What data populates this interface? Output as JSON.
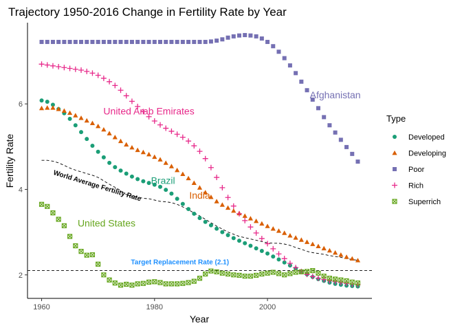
{
  "chart_data": {
    "type": "scatter",
    "title": "Trajectory 1950-2016 Change in Fertility Rate by Year",
    "xlabel": "Year",
    "ylabel": "Fertility Rate",
    "xlim": [
      1957.5,
      2018.5
    ],
    "ylim": [
      1.45,
      7.9
    ],
    "x_ticks": [
      1960,
      1980,
      2000
    ],
    "y_ticks": [
      2,
      4,
      6
    ],
    "grid": false,
    "legend": {
      "title": "Type",
      "position": "right"
    },
    "series": [
      {
        "name": "Developed",
        "color": "#1b9e77",
        "shape": "circle",
        "x": [
          1960,
          1961,
          1962,
          1963,
          1964,
          1965,
          1966,
          1967,
          1968,
          1969,
          1970,
          1971,
          1972,
          1973,
          1974,
          1975,
          1976,
          1977,
          1978,
          1979,
          1980,
          1981,
          1982,
          1983,
          1984,
          1985,
          1986,
          1987,
          1988,
          1989,
          1990,
          1991,
          1992,
          1993,
          1994,
          1995,
          1996,
          1997,
          1998,
          1999,
          2000,
          2001,
          2002,
          2003,
          2004,
          2005,
          2006,
          2007,
          2008,
          2009,
          2010,
          2011,
          2012,
          2013,
          2014,
          2015,
          2016
        ],
        "y": [
          6.08,
          6.05,
          5.98,
          5.88,
          5.78,
          5.65,
          5.5,
          5.34,
          5.18,
          5.02,
          4.88,
          4.75,
          4.62,
          4.52,
          4.44,
          4.37,
          4.3,
          4.24,
          4.19,
          4.15,
          4.11,
          4.06,
          3.99,
          3.9,
          3.78,
          3.66,
          3.54,
          3.43,
          3.33,
          3.24,
          3.16,
          3.08,
          3.0,
          2.93,
          2.86,
          2.8,
          2.74,
          2.68,
          2.62,
          2.56,
          2.5,
          2.43,
          2.36,
          2.29,
          2.22,
          2.15,
          2.08,
          2.01,
          1.95,
          1.9,
          1.86,
          1.82,
          1.79,
          1.77,
          1.75,
          1.74,
          1.73
        ]
      },
      {
        "name": "Developing",
        "color": "#d95f02",
        "shape": "triangle",
        "x": [
          1960,
          1961,
          1962,
          1963,
          1964,
          1965,
          1966,
          1967,
          1968,
          1969,
          1970,
          1971,
          1972,
          1973,
          1974,
          1975,
          1976,
          1977,
          1978,
          1979,
          1980,
          1981,
          1982,
          1983,
          1984,
          1985,
          1986,
          1987,
          1988,
          1989,
          1990,
          1991,
          1992,
          1993,
          1994,
          1995,
          1996,
          1997,
          1998,
          1999,
          2000,
          2001,
          2002,
          2003,
          2004,
          2005,
          2006,
          2007,
          2008,
          2009,
          2010,
          2011,
          2012,
          2013,
          2014,
          2015,
          2016
        ],
        "y": [
          5.9,
          5.91,
          5.91,
          5.88,
          5.84,
          5.79,
          5.73,
          5.67,
          5.61,
          5.55,
          5.48,
          5.4,
          5.31,
          5.22,
          5.13,
          5.05,
          4.98,
          4.92,
          4.87,
          4.82,
          4.76,
          4.7,
          4.62,
          4.54,
          4.45,
          4.36,
          4.26,
          4.15,
          4.04,
          3.93,
          3.82,
          3.72,
          3.64,
          3.57,
          3.5,
          3.44,
          3.38,
          3.32,
          3.26,
          3.2,
          3.14,
          3.08,
          3.03,
          2.98,
          2.92,
          2.87,
          2.82,
          2.77,
          2.72,
          2.67,
          2.62,
          2.57,
          2.52,
          2.47,
          2.42,
          2.38,
          2.34
        ]
      },
      {
        "name": "Poor",
        "color": "#7570b3",
        "shape": "square",
        "x": [
          1960,
          1961,
          1962,
          1963,
          1964,
          1965,
          1966,
          1967,
          1968,
          1969,
          1970,
          1971,
          1972,
          1973,
          1974,
          1975,
          1976,
          1977,
          1978,
          1979,
          1980,
          1981,
          1982,
          1983,
          1984,
          1985,
          1986,
          1987,
          1988,
          1989,
          1990,
          1991,
          1992,
          1993,
          1994,
          1995,
          1996,
          1997,
          1998,
          1999,
          2000,
          2001,
          2002,
          2003,
          2004,
          2005,
          2006,
          2007,
          2008,
          2009,
          2010,
          2011,
          2012,
          2013,
          2014,
          2015,
          2016
        ],
        "y": [
          7.45,
          7.45,
          7.45,
          7.45,
          7.45,
          7.45,
          7.45,
          7.45,
          7.45,
          7.45,
          7.45,
          7.45,
          7.45,
          7.45,
          7.45,
          7.45,
          7.45,
          7.45,
          7.45,
          7.45,
          7.45,
          7.45,
          7.45,
          7.45,
          7.45,
          7.45,
          7.45,
          7.45,
          7.45,
          7.45,
          7.46,
          7.48,
          7.51,
          7.55,
          7.58,
          7.6,
          7.61,
          7.6,
          7.58,
          7.53,
          7.45,
          7.35,
          7.22,
          7.07,
          6.9,
          6.72,
          6.52,
          6.32,
          6.1,
          5.9,
          5.69,
          5.5,
          5.33,
          5.16,
          4.99,
          4.83,
          4.65
        ]
      },
      {
        "name": "Rich",
        "color": "#e7298a",
        "shape": "plus",
        "x": [
          1960,
          1961,
          1962,
          1963,
          1964,
          1965,
          1966,
          1967,
          1968,
          1969,
          1970,
          1971,
          1972,
          1973,
          1974,
          1975,
          1976,
          1977,
          1978,
          1979,
          1980,
          1981,
          1982,
          1983,
          1984,
          1985,
          1986,
          1987,
          1988,
          1989,
          1990,
          1991,
          1992,
          1993,
          1994,
          1995,
          1996,
          1997,
          1998,
          1999,
          2000,
          2001,
          2002,
          2003,
          2004,
          2005,
          2006,
          2007,
          2008,
          2009,
          2010,
          2011,
          2012,
          2013,
          2014,
          2015,
          2016
        ],
        "y": [
          6.93,
          6.91,
          6.89,
          6.87,
          6.85,
          6.83,
          6.81,
          6.79,
          6.76,
          6.72,
          6.67,
          6.6,
          6.52,
          6.43,
          6.32,
          6.19,
          6.06,
          5.94,
          5.82,
          5.7,
          5.6,
          5.51,
          5.43,
          5.36,
          5.29,
          5.22,
          5.13,
          5.02,
          4.89,
          4.72,
          4.51,
          4.28,
          4.04,
          3.81,
          3.61,
          3.43,
          3.27,
          3.12,
          2.98,
          2.85,
          2.73,
          2.61,
          2.49,
          2.38,
          2.27,
          2.17,
          2.08,
          2.01,
          1.96,
          1.92,
          1.89,
          1.86,
          1.84,
          1.82,
          1.8,
          1.78,
          1.77
        ]
      },
      {
        "name": "Superrich",
        "color": "#66a61e",
        "shape": "square-cross",
        "x": [
          1960,
          1961,
          1962,
          1963,
          1964,
          1965,
          1966,
          1967,
          1968,
          1969,
          1970,
          1971,
          1972,
          1973,
          1974,
          1975,
          1976,
          1977,
          1978,
          1979,
          1980,
          1981,
          1982,
          1983,
          1984,
          1985,
          1986,
          1987,
          1988,
          1989,
          1990,
          1991,
          1992,
          1993,
          1994,
          1995,
          1996,
          1997,
          1998,
          1999,
          2000,
          2001,
          2002,
          2003,
          2004,
          2005,
          2006,
          2007,
          2008,
          2009,
          2010,
          2011,
          2012,
          2013,
          2014,
          2015,
          2016
        ],
        "y": [
          3.65,
          3.6,
          3.45,
          3.3,
          3.15,
          2.9,
          2.68,
          2.55,
          2.46,
          2.47,
          2.25,
          2.0,
          1.88,
          1.81,
          1.76,
          1.78,
          1.76,
          1.79,
          1.8,
          1.83,
          1.84,
          1.82,
          1.79,
          1.79,
          1.79,
          1.8,
          1.82,
          1.85,
          1.92,
          2.02,
          2.09,
          2.07,
          2.04,
          2.02,
          2.0,
          1.99,
          1.97,
          1.97,
          1.99,
          2.02,
          2.04,
          2.06,
          2.03,
          2.0,
          2.03,
          2.06,
          2.07,
          2.08,
          2.1,
          2.04,
          1.97,
          1.92,
          1.9,
          1.88,
          1.86,
          1.83,
          1.81
        ]
      }
    ],
    "reference_lines": {
      "world_average": {
        "label": "World Average Fertility Rate",
        "style": "dashed",
        "x": [
          1960,
          1961,
          1962,
          1963,
          1964,
          1965,
          1966,
          1967,
          1968,
          1969,
          1970,
          1971,
          1972,
          1973,
          1974,
          1975,
          1976,
          1977,
          1978,
          1979,
          1980,
          1981,
          1982,
          1983,
          1984,
          1985,
          1986,
          1987,
          1988,
          1989,
          1990,
          1991,
          1992,
          1993,
          1994,
          1995,
          1996,
          1997,
          1998,
          1999,
          2000,
          2001,
          2002,
          2003,
          2004,
          2005,
          2006,
          2007,
          2008,
          2009,
          2010,
          2011,
          2012,
          2013,
          2014,
          2015,
          2016
        ],
        "y": [
          4.68,
          4.68,
          4.66,
          4.62,
          4.56,
          4.5,
          4.45,
          4.41,
          4.37,
          4.33,
          4.28,
          4.2,
          4.12,
          4.05,
          3.97,
          3.88,
          3.84,
          3.82,
          3.79,
          3.78,
          3.75,
          3.72,
          3.71,
          3.69,
          3.65,
          3.59,
          3.52,
          3.45,
          3.38,
          3.3,
          3.22,
          3.14,
          3.07,
          3.0,
          2.95,
          2.9,
          2.87,
          2.84,
          2.81,
          2.78,
          2.75,
          2.74,
          2.74,
          2.72,
          2.69,
          2.64,
          2.6,
          2.55,
          2.52,
          2.5,
          2.48,
          2.45,
          2.43,
          2.41,
          2.38,
          2.36,
          2.34
        ]
      },
      "target_replacement": {
        "label": "Target Replacement Rate (2.1)",
        "y": 2.1,
        "style": "dashed",
        "color": "#1e90ff"
      }
    },
    "annotations": [
      {
        "text": "Afghanistan",
        "x": 2012,
        "y": 6.13,
        "color": "#7570b3"
      },
      {
        "text": "United Arab Emirates",
        "x": 1979,
        "y": 5.75,
        "color": "#e7298a"
      },
      {
        "text": "Brazil",
        "x": 1981.5,
        "y": 4.13,
        "color": "#1b9e77"
      },
      {
        "text": "India",
        "x": 1988,
        "y": 3.78,
        "color": "#d95f02"
      },
      {
        "text": "United States",
        "x": 1971.5,
        "y": 3.13,
        "color": "#66a61e"
      }
    ]
  }
}
